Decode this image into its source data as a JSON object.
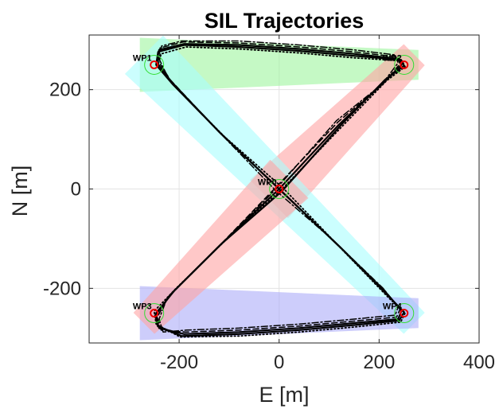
{
  "chart_data": {
    "type": "line",
    "title": "SIL Trajectories",
    "xlabel": "E [m]",
    "ylabel": "N [m]",
    "xlim": [
      -380,
      400
    ],
    "ylim": [
      -310,
      310
    ],
    "xticks": [
      -200,
      0,
      200,
      400
    ],
    "yticks": [
      -200,
      0,
      200
    ],
    "xtick_labels": [
      "-200",
      "0",
      "200",
      "400"
    ],
    "ytick_labels": [
      "-200",
      "0",
      "200"
    ],
    "grid": true,
    "waypoints": [
      {
        "label": "WP0",
        "x": 0,
        "y": 0
      },
      {
        "label": "WP1",
        "x": -250,
        "y": 250
      },
      {
        "label": "WP2",
        "x": 250,
        "y": 250
      },
      {
        "label": "WP3",
        "x": -250,
        "y": -250
      },
      {
        "label": "WP4",
        "x": 250,
        "y": -250
      }
    ],
    "corridors": [
      {
        "from": "WP1",
        "to": "WP2",
        "color": "#9ff59f"
      },
      {
        "from": "WP0",
        "to": "WP2",
        "color": "#ffa3a3"
      },
      {
        "from": "WP1",
        "to": "WP4",
        "color": "#a8fdfd"
      },
      {
        "from": "WP3",
        "to": "WP4",
        "color": "#ababf8"
      },
      {
        "from": "WP0",
        "to": "WP3",
        "color": "#ffa3a3"
      }
    ],
    "series": [
      {
        "style": "solid",
        "points": [
          [
            0,
            0
          ],
          [
            120,
            130
          ],
          [
            210,
            215
          ],
          [
            245,
            250
          ],
          [
            240,
            262
          ],
          [
            150,
            272
          ],
          [
            40,
            282
          ],
          [
            -80,
            290
          ],
          [
            -190,
            292
          ],
          [
            -240,
            280
          ],
          [
            -245,
            255
          ],
          [
            -215,
            215
          ],
          [
            -120,
            115
          ],
          [
            0,
            0
          ],
          [
            120,
            -115
          ],
          [
            215,
            -210
          ],
          [
            245,
            -245
          ],
          [
            238,
            -262
          ],
          [
            150,
            -270
          ],
          [
            40,
            -280
          ],
          [
            -80,
            -288
          ],
          [
            -190,
            -292
          ],
          [
            -240,
            -280
          ],
          [
            -248,
            -255
          ],
          [
            -215,
            -210
          ],
          [
            -120,
            -115
          ],
          [
            0,
            0
          ]
        ]
      },
      {
        "style": "solid",
        "points": [
          [
            5,
            -5
          ],
          [
            125,
            130
          ],
          [
            212,
            220
          ],
          [
            250,
            248
          ],
          [
            244,
            260
          ],
          [
            150,
            268
          ],
          [
            40,
            278
          ],
          [
            -80,
            286
          ],
          [
            -190,
            290
          ],
          [
            -242,
            276
          ],
          [
            -246,
            250
          ],
          [
            -212,
            210
          ],
          [
            -115,
            110
          ],
          [
            5,
            -5
          ],
          [
            125,
            -120
          ],
          [
            218,
            -215
          ],
          [
            250,
            -248
          ],
          [
            240,
            -265
          ],
          [
            150,
            -274
          ],
          [
            40,
            -284
          ],
          [
            -80,
            -292
          ],
          [
            -195,
            -296
          ],
          [
            -243,
            -276
          ],
          [
            -246,
            -250
          ],
          [
            -210,
            -205
          ],
          [
            -115,
            -110
          ],
          [
            5,
            -5
          ]
        ]
      },
      {
        "style": "dashed",
        "points": [
          [
            -5,
            5
          ],
          [
            118,
            135
          ],
          [
            208,
            212
          ],
          [
            242,
            252
          ],
          [
            236,
            266
          ],
          [
            150,
            276
          ],
          [
            40,
            286
          ],
          [
            -80,
            294
          ],
          [
            -192,
            296
          ],
          [
            -238,
            284
          ],
          [
            -242,
            258
          ],
          [
            -218,
            220
          ],
          [
            -125,
            120
          ],
          [
            -5,
            5
          ],
          [
            115,
            -110
          ],
          [
            212,
            -205
          ],
          [
            242,
            -242
          ],
          [
            235,
            -258
          ],
          [
            150,
            -266
          ],
          [
            40,
            -276
          ],
          [
            -80,
            -284
          ],
          [
            -188,
            -288
          ],
          [
            -236,
            -284
          ],
          [
            -244,
            -258
          ],
          [
            -220,
            -215
          ],
          [
            -125,
            -120
          ],
          [
            -5,
            5
          ]
        ]
      },
      {
        "style": "dotted",
        "points": [
          [
            8,
            2
          ],
          [
            128,
            128
          ],
          [
            215,
            218
          ],
          [
            252,
            246
          ],
          [
            246,
            258
          ],
          [
            150,
            264
          ],
          [
            40,
            274
          ],
          [
            -80,
            282
          ],
          [
            -186,
            286
          ],
          [
            -236,
            272
          ],
          [
            -243,
            247
          ],
          [
            -208,
            206
          ],
          [
            -110,
            106
          ],
          [
            8,
            2
          ],
          [
            128,
            -124
          ],
          [
            220,
            -220
          ],
          [
            252,
            -250
          ],
          [
            243,
            -268
          ],
          [
            150,
            -278
          ],
          [
            40,
            -288
          ],
          [
            -80,
            -296
          ],
          [
            -198,
            -298
          ],
          [
            -246,
            -272
          ],
          [
            -250,
            -246
          ],
          [
            -206,
            -200
          ],
          [
            -110,
            -106
          ],
          [
            8,
            2
          ]
        ]
      },
      {
        "style": "dashdot",
        "points": [
          [
            -8,
            -2
          ],
          [
            115,
            138
          ],
          [
            205,
            210
          ],
          [
            238,
            254
          ],
          [
            232,
            270
          ],
          [
            150,
            280
          ],
          [
            40,
            290
          ],
          [
            -80,
            298
          ],
          [
            -195,
            298
          ],
          [
            -235,
            288
          ],
          [
            -240,
            262
          ],
          [
            -222,
            224
          ],
          [
            -130,
            125
          ],
          [
            -8,
            -2
          ],
          [
            110,
            -105
          ],
          [
            208,
            -200
          ],
          [
            238,
            -238
          ],
          [
            232,
            -254
          ],
          [
            150,
            -262
          ],
          [
            40,
            -272
          ],
          [
            -80,
            -280
          ],
          [
            -185,
            -284
          ],
          [
            -232,
            -288
          ],
          [
            -240,
            -262
          ],
          [
            -224,
            -220
          ],
          [
            -130,
            -125
          ],
          [
            -8,
            -2
          ]
        ]
      }
    ]
  }
}
